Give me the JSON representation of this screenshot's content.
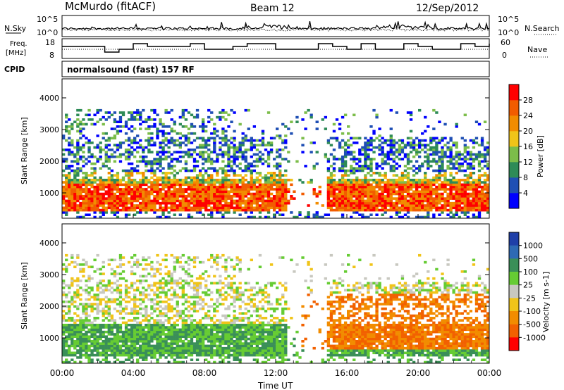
{
  "header": {
    "station": "McMurdo (fitACF)",
    "beam": "Beam 12",
    "date": "12/Sep/2012"
  },
  "left_labels": {
    "nsky": "N.Sky",
    "freq_line1": "Freq.",
    "freq_line2": "[MHz]",
    "cpid": "CPID"
  },
  "right_labels": {
    "nsearch": "N.Search",
    "nave": "Nave"
  },
  "noise_ticks": {
    "top": "10^5",
    "bottom": "10^0"
  },
  "freq_ticks": [
    "18",
    "8"
  ],
  "nave_ticks": [
    "60",
    "0"
  ],
  "cpid_text": "normalsound (fast) 157 RF",
  "colors": {
    "power": [
      "#0000ff",
      "#1f4fb4",
      "#2e8b57",
      "#7cbd4a",
      "#f0c419",
      "#f28c00",
      "#f25c00",
      "#ff0000"
    ],
    "velocity": [
      "#1f3fa8",
      "#2e6ab4",
      "#3a8f58",
      "#66cc33",
      "#c8c8c0",
      "#f0c419",
      "#f28c00",
      "#f26100",
      "#ff0000"
    ]
  },
  "chart_data": [
    {
      "type": "line",
      "name": "noise",
      "series": [
        {
          "name": "N.Sky",
          "style": "solid"
        },
        {
          "name": "N.Search",
          "style": "dotted"
        }
      ],
      "ylabel_ticks": [
        "10^5",
        "10^0"
      ]
    },
    {
      "type": "line",
      "name": "frequency",
      "ylabel": "Freq. [MHz]",
      "ylim_left": [
        8,
        18
      ],
      "ylim_right": [
        0,
        60
      ],
      "series": [
        {
          "name": "Freq.",
          "style": "step"
        },
        {
          "name": "Nave",
          "style": "dotted"
        }
      ]
    },
    {
      "type": "heatmap",
      "name": "power",
      "ylabel": "Slant Range [km]",
      "y_ticks": [
        "1000",
        "2000",
        "3000",
        "4000"
      ],
      "ylim": [
        200,
        4600
      ],
      "colorbar_label": "Power [dB]",
      "colorbar_ticks": [
        "4",
        "8",
        "12",
        "16",
        "20",
        "24",
        "28"
      ]
    },
    {
      "type": "heatmap",
      "name": "velocity",
      "ylabel": "Slant Range [km]",
      "y_ticks": [
        "1000",
        "2000",
        "3000",
        "4000"
      ],
      "ylim": [
        200,
        4600
      ],
      "x_ticks": [
        "00:00",
        "04:00",
        "08:00",
        "12:00",
        "16:00",
        "20:00",
        "00:00"
      ],
      "xlabel": "Time UT",
      "colorbar_label": "Velocity [m s-1]",
      "colorbar_ticks": [
        "1000",
        "500",
        "100",
        "25",
        "-25",
        "-100",
        "-500",
        "-1000"
      ]
    }
  ]
}
